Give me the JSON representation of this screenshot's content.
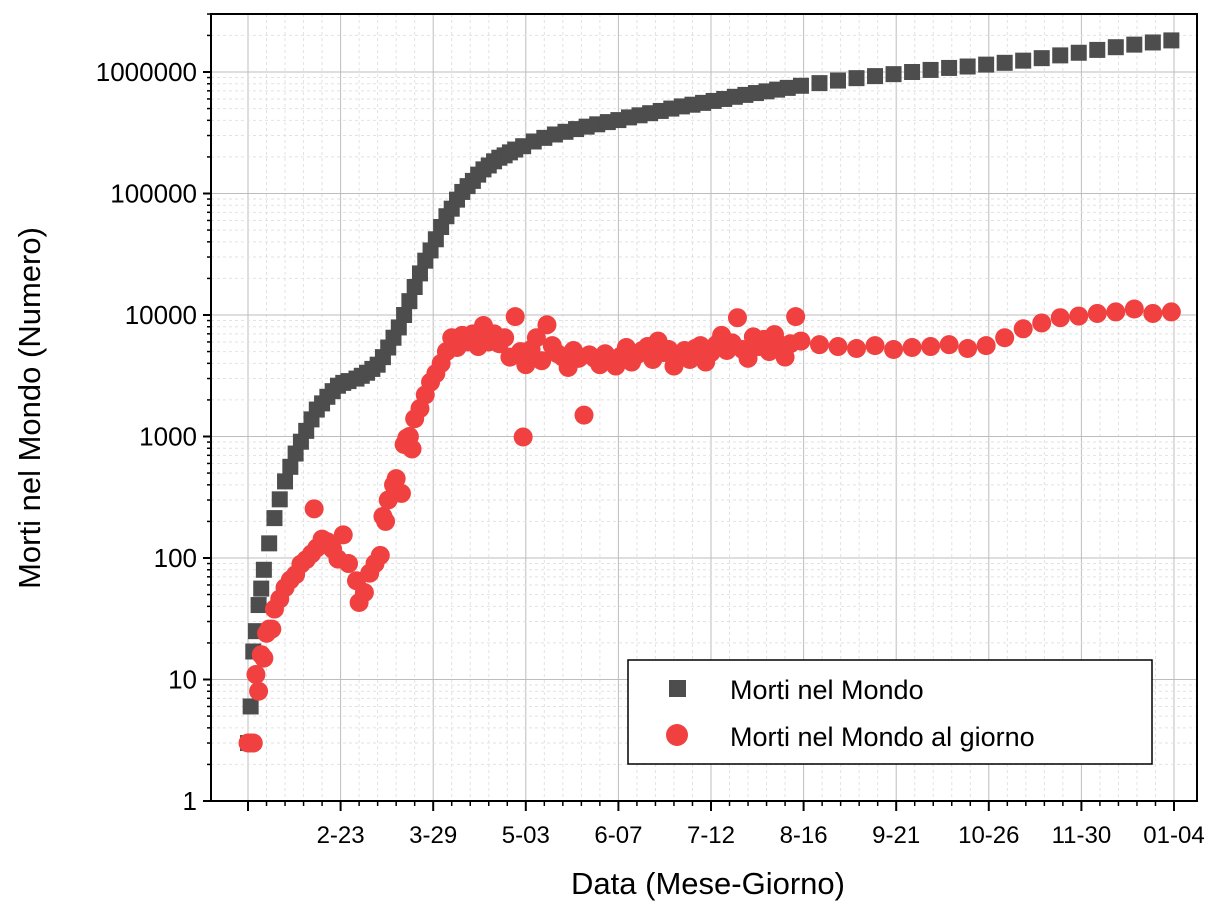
{
  "chart_data": {
    "type": "scatter",
    "title": "",
    "xlabel": "Data (Mese-Giorno)",
    "ylabel": "Morti nel Mondo (Numero)",
    "yscale": "log",
    "ylim": [
      1,
      3000000
    ],
    "grid": true,
    "legend_position": "bottom-right",
    "x_tick_labels": [
      "2-23",
      "3-29",
      "5-03",
      "6-07",
      "7-12",
      "8-16",
      "9-21",
      "10-26",
      "11-30",
      "01-04"
    ],
    "y_tick_labels": [
      "1",
      "10",
      "100",
      "1000",
      "10000",
      "100000",
      "1000000"
    ],
    "colors": {
      "cumulative": "#4d4d4d",
      "daily": "#f04040"
    },
    "series": [
      {
        "name": "Morti nel Mondo",
        "marker": "square",
        "points": [
          [
            "01-20",
            3
          ],
          [
            "01-21",
            6
          ],
          [
            "01-22",
            17
          ],
          [
            "01-23",
            25
          ],
          [
            "01-24",
            41
          ],
          [
            "01-25",
            56
          ],
          [
            "01-26",
            80
          ],
          [
            "01-28",
            132
          ],
          [
            "01-30",
            213
          ],
          [
            "02-01",
            304
          ],
          [
            "02-03",
            427
          ],
          [
            "02-05",
            563
          ],
          [
            "02-07",
            724
          ],
          [
            "02-09",
            906
          ],
          [
            "02-11",
            1113
          ],
          [
            "02-13",
            1383
          ],
          [
            "02-15",
            1666
          ],
          [
            "02-17",
            1873
          ],
          [
            "02-19",
            2122
          ],
          [
            "02-21",
            2361
          ],
          [
            "02-23",
            2618
          ],
          [
            "02-25",
            2763
          ],
          [
            "02-27",
            2858
          ],
          [
            "03-01",
            2997
          ],
          [
            "03-03",
            3160
          ],
          [
            "03-05",
            3348
          ],
          [
            "03-07",
            3600
          ],
          [
            "03-09",
            3900
          ],
          [
            "03-11",
            4500
          ],
          [
            "03-13",
            5400
          ],
          [
            "03-15",
            6500
          ],
          [
            "03-17",
            7900
          ],
          [
            "03-19",
            10000
          ],
          [
            "03-21",
            13000
          ],
          [
            "03-23",
            17000
          ],
          [
            "03-25",
            22000
          ],
          [
            "03-27",
            28000
          ],
          [
            "03-29",
            34000
          ],
          [
            "03-31",
            42000
          ],
          [
            "04-02",
            53000
          ],
          [
            "04-04",
            65000
          ],
          [
            "04-06",
            75000
          ],
          [
            "04-08",
            89000
          ],
          [
            "04-10",
            103000
          ],
          [
            "04-12",
            115000
          ],
          [
            "04-14",
            127000
          ],
          [
            "04-16",
            143000
          ],
          [
            "04-18",
            158000
          ],
          [
            "04-20",
            170000
          ],
          [
            "04-22",
            184000
          ],
          [
            "04-24",
            197000
          ],
          [
            "04-26",
            206000
          ],
          [
            "04-28",
            218000
          ],
          [
            "04-30",
            230000
          ],
          [
            "05-03",
            245000
          ],
          [
            "05-07",
            268000
          ],
          [
            "05-11",
            287000
          ],
          [
            "05-15",
            306000
          ],
          [
            "05-19",
            322000
          ],
          [
            "05-23",
            339000
          ],
          [
            "05-27",
            355000
          ],
          [
            "05-31",
            371000
          ],
          [
            "06-04",
            387000
          ],
          [
            "06-08",
            402000
          ],
          [
            "06-12",
            423000
          ],
          [
            "06-16",
            440000
          ],
          [
            "06-20",
            458000
          ],
          [
            "06-24",
            478000
          ],
          [
            "06-28",
            500000
          ],
          [
            "07-02",
            521000
          ],
          [
            "07-06",
            538000
          ],
          [
            "07-10",
            557000
          ],
          [
            "07-14",
            578000
          ],
          [
            "07-18",
            600000
          ],
          [
            "07-22",
            625000
          ],
          [
            "07-26",
            648000
          ],
          [
            "07-30",
            671000
          ],
          [
            "08-03",
            693000
          ],
          [
            "08-07",
            716000
          ],
          [
            "08-11",
            740000
          ],
          [
            "08-16",
            770000
          ],
          [
            "08-23",
            810000
          ],
          [
            "08-30",
            850000
          ],
          [
            "09-06",
            890000
          ],
          [
            "09-13",
            925000
          ],
          [
            "09-20",
            960000
          ],
          [
            "09-27",
            1000000
          ],
          [
            "10-04",
            1040000
          ],
          [
            "10-11",
            1080000
          ],
          [
            "10-18",
            1110000
          ],
          [
            "10-25",
            1150000
          ],
          [
            "11-01",
            1190000
          ],
          [
            "11-08",
            1240000
          ],
          [
            "11-15",
            1300000
          ],
          [
            "11-22",
            1370000
          ],
          [
            "11-29",
            1440000
          ],
          [
            "12-06",
            1520000
          ],
          [
            "12-13",
            1600000
          ],
          [
            "12-20",
            1680000
          ],
          [
            "12-27",
            1750000
          ],
          [
            "01-03",
            1820000
          ]
        ]
      },
      {
        "name": "Morti nel Mondo al giorno",
        "marker": "circle",
        "points": [
          [
            "01-20",
            3
          ],
          [
            "01-21",
            3
          ],
          [
            "01-22",
            3
          ],
          [
            "01-23",
            11
          ],
          [
            "01-24",
            8
          ],
          [
            "01-25",
            16
          ],
          [
            "01-26",
            15
          ],
          [
            "01-27",
            24
          ],
          [
            "01-28",
            26
          ],
          [
            "01-29",
            26
          ],
          [
            "01-30",
            38
          ],
          [
            "02-01",
            46
          ],
          [
            "02-03",
            57
          ],
          [
            "02-05",
            66
          ],
          [
            "02-07",
            73
          ],
          [
            "02-09",
            89
          ],
          [
            "02-11",
            97
          ],
          [
            "02-13",
            108
          ],
          [
            "02-14",
            254
          ],
          [
            "02-15",
            121
          ],
          [
            "02-17",
            143
          ],
          [
            "02-19",
            136
          ],
          [
            "02-21",
            118
          ],
          [
            "02-23",
            98
          ],
          [
            "02-25",
            155
          ],
          [
            "02-27",
            90
          ],
          [
            "03-01",
            65
          ],
          [
            "03-02",
            43
          ],
          [
            "03-04",
            52
          ],
          [
            "03-06",
            75
          ],
          [
            "03-08",
            90
          ],
          [
            "03-10",
            105
          ],
          [
            "03-11",
            220
          ],
          [
            "03-12",
            200
          ],
          [
            "03-13",
            300
          ],
          [
            "03-15",
            400
          ],
          [
            "03-16",
            450
          ],
          [
            "03-18",
            340
          ],
          [
            "03-19",
            860
          ],
          [
            "03-20",
            970
          ],
          [
            "03-21",
            1000
          ],
          [
            "03-22",
            790
          ],
          [
            "03-23",
            1400
          ],
          [
            "03-25",
            1700
          ],
          [
            "03-27",
            2200
          ],
          [
            "03-29",
            2800
          ],
          [
            "03-31",
            3300
          ],
          [
            "04-02",
            4000
          ],
          [
            "04-04",
            5000
          ],
          [
            "04-06",
            6500
          ],
          [
            "04-08",
            5400
          ],
          [
            "04-10",
            6800
          ],
          [
            "04-12",
            6000
          ],
          [
            "04-14",
            7000
          ],
          [
            "04-16",
            5500
          ],
          [
            "04-18",
            8200
          ],
          [
            "04-20",
            6000
          ],
          [
            "04-22",
            7000
          ],
          [
            "04-24",
            5800
          ],
          [
            "04-26",
            6500
          ],
          [
            "04-28",
            4500
          ],
          [
            "04-30",
            9700
          ],
          [
            "05-02",
            5000
          ],
          [
            "05-03",
            990
          ],
          [
            "05-04",
            3900
          ],
          [
            "05-06",
            5200
          ],
          [
            "05-08",
            6500
          ],
          [
            "05-10",
            4200
          ],
          [
            "05-12",
            8300
          ],
          [
            "05-14",
            5600
          ],
          [
            "05-16",
            4800
          ],
          [
            "05-18",
            4500
          ],
          [
            "05-20",
            3700
          ],
          [
            "05-22",
            5100
          ],
          [
            "05-24",
            4400
          ],
          [
            "05-26",
            1500
          ],
          [
            "05-28",
            4700
          ],
          [
            "05-30",
            4400
          ],
          [
            "06-01",
            3900
          ],
          [
            "06-03",
            4800
          ],
          [
            "06-05",
            4400
          ],
          [
            "06-07",
            3800
          ],
          [
            "06-09",
            4600
          ],
          [
            "06-11",
            5400
          ],
          [
            "06-13",
            4100
          ],
          [
            "06-15",
            4700
          ],
          [
            "06-17",
            5100
          ],
          [
            "06-19",
            5500
          ],
          [
            "06-21",
            4300
          ],
          [
            "06-23",
            6100
          ],
          [
            "06-25",
            4900
          ],
          [
            "06-27",
            5200
          ],
          [
            "06-29",
            3800
          ],
          [
            "07-01",
            4700
          ],
          [
            "07-03",
            5100
          ],
          [
            "07-05",
            4300
          ],
          [
            "07-07",
            5300
          ],
          [
            "07-09",
            5600
          ],
          [
            "07-11",
            4100
          ],
          [
            "07-13",
            4900
          ],
          [
            "07-15",
            5700
          ],
          [
            "07-17",
            6800
          ],
          [
            "07-19",
            5100
          ],
          [
            "07-21",
            5900
          ],
          [
            "07-23",
            9500
          ],
          [
            "07-25",
            5200
          ],
          [
            "07-27",
            4400
          ],
          [
            "07-29",
            6600
          ],
          [
            "07-31",
            5500
          ],
          [
            "08-02",
            6300
          ],
          [
            "08-04",
            5000
          ],
          [
            "08-06",
            6900
          ],
          [
            "08-08",
            5700
          ],
          [
            "08-10",
            4500
          ],
          [
            "08-12",
            5800
          ],
          [
            "08-14",
            9700
          ],
          [
            "08-16",
            6100
          ],
          [
            "08-23",
            5700
          ],
          [
            "08-30",
            5500
          ],
          [
            "09-06",
            5300
          ],
          [
            "09-13",
            5600
          ],
          [
            "09-20",
            5200
          ],
          [
            "09-27",
            5400
          ],
          [
            "10-04",
            5500
          ],
          [
            "10-11",
            5700
          ],
          [
            "10-18",
            5300
          ],
          [
            "10-25",
            5600
          ],
          [
            "11-01",
            6500
          ],
          [
            "11-08",
            7700
          ],
          [
            "11-15",
            8600
          ],
          [
            "11-22",
            9500
          ],
          [
            "11-29",
            9800
          ],
          [
            "12-06",
            10300
          ],
          [
            "12-13",
            10600
          ],
          [
            "12-20",
            11200
          ],
          [
            "12-27",
            10300
          ],
          [
            "01-03",
            10600
          ]
        ]
      }
    ]
  }
}
